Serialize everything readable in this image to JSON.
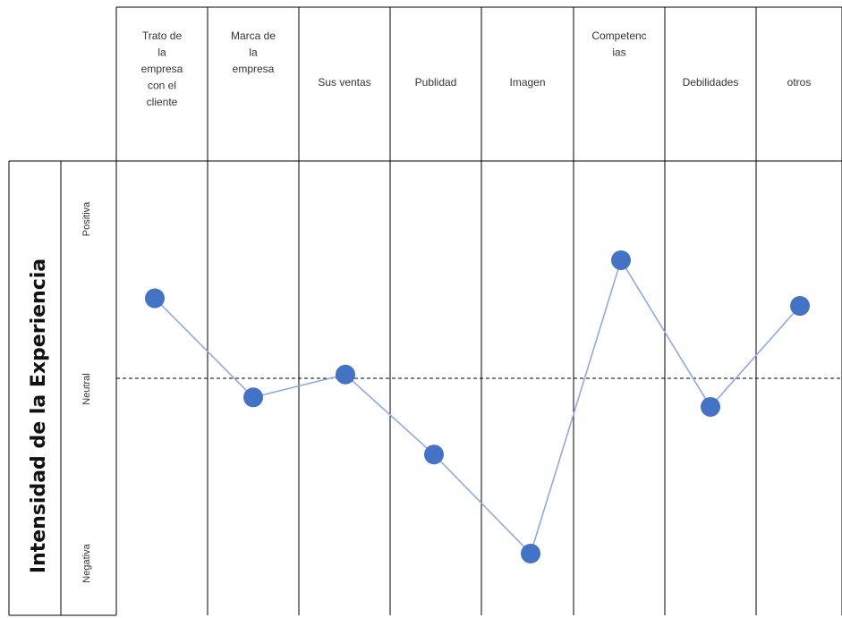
{
  "chart_data": {
    "type": "line",
    "categories": [
      [
        "Trato de",
        "la",
        "empresa",
        "con el",
        "cliente"
      ],
      [
        "Marca de",
        "la",
        "empresa"
      ],
      [
        "Sus ventas"
      ],
      [
        "Publidad"
      ],
      [
        "Imagen"
      ],
      [
        "Competenc",
        "ias"
      ],
      [
        "Debilidades"
      ],
      [
        "otros"
      ]
    ],
    "values": [
      0.42,
      -0.1,
      0.02,
      -0.4,
      -0.92,
      0.62,
      -0.15,
      0.38
    ],
    "ylim": [
      -1,
      1
    ],
    "ylabel": "Intensidad de la Experiencia",
    "y_levels": {
      "top": "Positiva",
      "middle": "Neutral",
      "bottom": "Negativa"
    },
    "neutral_line": "dashed",
    "colors": {
      "line": "#8FAADC",
      "marker": "#4472C4",
      "grid": "#000000"
    }
  }
}
